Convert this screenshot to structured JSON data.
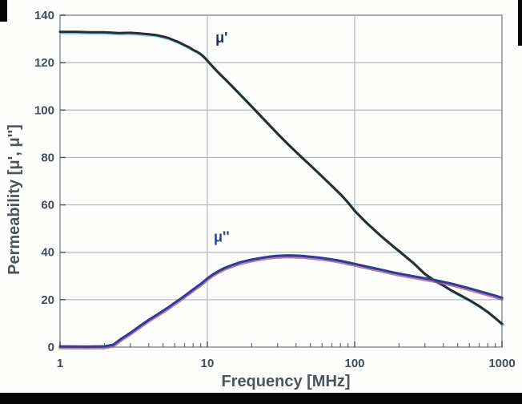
{
  "figure": {
    "x_axis_title": "Frequency [MHz]",
    "y_axis_title": "Permeability [μ', μ'']"
  },
  "colors": {
    "grid": "#b2b9bd",
    "frame": "#8f989d",
    "tick": "#4a5560",
    "tick_text": "#414d58",
    "axis_title_text": "#4b555c",
    "mu_prime_curve": "#2c2c30",
    "mu_prime_fringe": "#6cc9e4",
    "mu_double_prime_curve": "#2e3d90",
    "mu_double_prime_fringe": "#9c4f9e",
    "scan_border": "#070707"
  },
  "chart_data": {
    "type": "line",
    "title": "",
    "xlabel": "Frequency [MHz]",
    "ylabel": "Permeability [μ', μ'']",
    "x_scale": "log",
    "xlim": [
      1,
      1000
    ],
    "ylim": [
      0,
      140
    ],
    "x_ticks": [
      1,
      10,
      100,
      1000
    ],
    "y_ticks": [
      0,
      20,
      40,
      60,
      80,
      100,
      120,
      140
    ],
    "grid": true,
    "legend_position": "inline-curve-labels",
    "series": [
      {
        "name": "μ'",
        "color": "#2c2c30",
        "fringe_color": "#6cc9e4",
        "points": [
          [
            1,
            133
          ],
          [
            1.3,
            133
          ],
          [
            1.6,
            132.8
          ],
          [
            2,
            132.8
          ],
          [
            2.5,
            132.5
          ],
          [
            3,
            132.6
          ],
          [
            3.5,
            132.3
          ],
          [
            4,
            132
          ],
          [
            4.5,
            131.6
          ],
          [
            5,
            131
          ],
          [
            5.5,
            130.3
          ],
          [
            6,
            129.3
          ],
          [
            6.5,
            128.4
          ],
          [
            7,
            127.4
          ],
          [
            7.5,
            126.5
          ],
          [
            8,
            125.4
          ],
          [
            8.5,
            124.6
          ],
          [
            9,
            123.6
          ],
          [
            9.5,
            122.3
          ],
          [
            10,
            120.8
          ],
          [
            11,
            118
          ],
          [
            12,
            115.5
          ],
          [
            13,
            113.4
          ],
          [
            14,
            111.4
          ],
          [
            15,
            109.5
          ],
          [
            17,
            106
          ],
          [
            20,
            101.5
          ],
          [
            23,
            97.5
          ],
          [
            26,
            94
          ],
          [
            30,
            90
          ],
          [
            35,
            85.8
          ],
          [
            40,
            82.3
          ],
          [
            45,
            79.3
          ],
          [
            50,
            76.7
          ],
          [
            60,
            72
          ],
          [
            70,
            68
          ],
          [
            80,
            64.5
          ],
          [
            90,
            61
          ],
          [
            100,
            57.5
          ],
          [
            120,
            52.5
          ],
          [
            150,
            47
          ],
          [
            180,
            42.8
          ],
          [
            200,
            40.5
          ],
          [
            250,
            35.5
          ],
          [
            300,
            30.8
          ],
          [
            350,
            28
          ],
          [
            400,
            26
          ],
          [
            450,
            24
          ],
          [
            500,
            22.5
          ],
          [
            600,
            19.8
          ],
          [
            700,
            17.3
          ],
          [
            800,
            14.8
          ],
          [
            900,
            12.2
          ],
          [
            1000,
            9.8
          ]
        ]
      },
      {
        "name": "μ''",
        "color": "#2e3d90",
        "fringe_color": "#9c4f9e",
        "points": [
          [
            1,
            0.3
          ],
          [
            1.5,
            0.2
          ],
          [
            2,
            0.3
          ],
          [
            2.3,
            1
          ],
          [
            2.6,
            3.5
          ],
          [
            3,
            6
          ],
          [
            3.5,
            9
          ],
          [
            4,
            11.5
          ],
          [
            4.5,
            13.5
          ],
          [
            5,
            15.3
          ],
          [
            5.5,
            17
          ],
          [
            6,
            18.7
          ],
          [
            6.5,
            20.2
          ],
          [
            7,
            21.6
          ],
          [
            7.5,
            23
          ],
          [
            8,
            24.3
          ],
          [
            8.5,
            25.5
          ],
          [
            9,
            26.6
          ],
          [
            9.5,
            27.8
          ],
          [
            10,
            29
          ],
          [
            11,
            30.8
          ],
          [
            12,
            32.2
          ],
          [
            13,
            33.3
          ],
          [
            14,
            34.1
          ],
          [
            15,
            34.8
          ],
          [
            17,
            35.9
          ],
          [
            20,
            36.9
          ],
          [
            23,
            37.6
          ],
          [
            26,
            38.1
          ],
          [
            30,
            38.5
          ],
          [
            35,
            38.7
          ],
          [
            40,
            38.6
          ],
          [
            45,
            38.4
          ],
          [
            50,
            38.1
          ],
          [
            60,
            37.6
          ],
          [
            70,
            37
          ],
          [
            80,
            36.4
          ],
          [
            90,
            35.7
          ],
          [
            100,
            35.1
          ],
          [
            120,
            34
          ],
          [
            150,
            32.7
          ],
          [
            180,
            31.6
          ],
          [
            200,
            31
          ],
          [
            250,
            29.9
          ],
          [
            300,
            29
          ],
          [
            350,
            28.3
          ],
          [
            400,
            27.5
          ],
          [
            450,
            26.8
          ],
          [
            500,
            26.1
          ],
          [
            600,
            24.8
          ],
          [
            700,
            23.6
          ],
          [
            800,
            22.6
          ],
          [
            900,
            21.7
          ],
          [
            1000,
            20.8
          ]
        ]
      }
    ],
    "annotations": [
      {
        "text": "μ'",
        "f": 12.5,
        "v": 128.5,
        "color": "#222c5e"
      },
      {
        "text": "μ''",
        "f": 12.5,
        "v": 44.5,
        "color": "#2b3c98"
      }
    ]
  }
}
